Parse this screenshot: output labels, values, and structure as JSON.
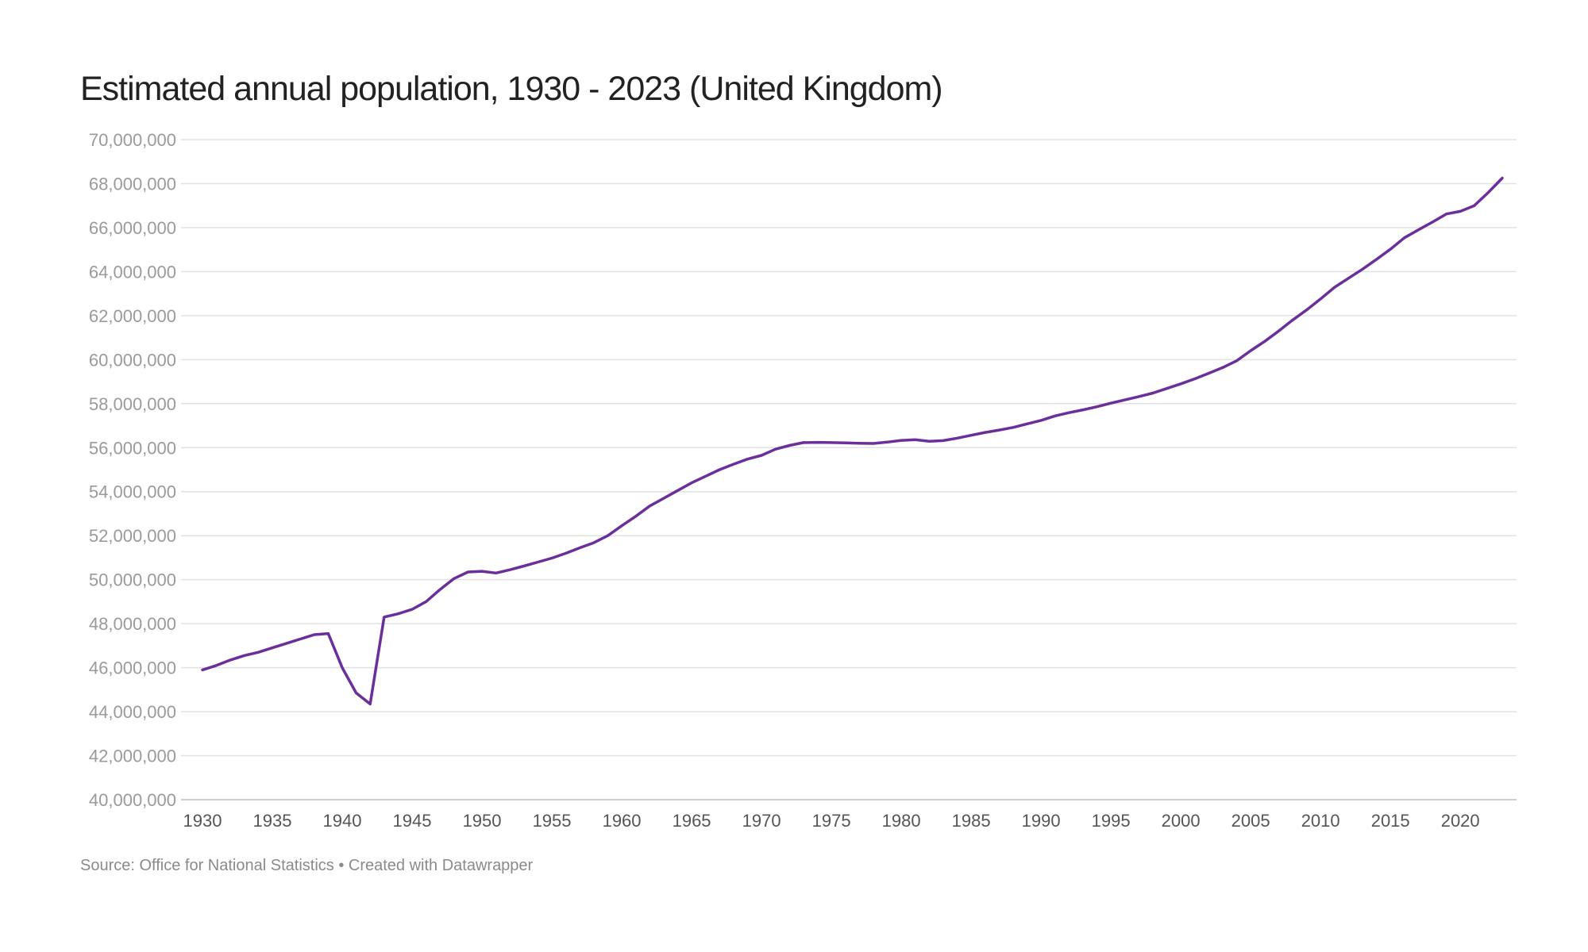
{
  "title": "Estimated annual population, 1930 - 2023 (United Kingdom)",
  "source": "Source: Office for National Statistics • Created with Datawrapper",
  "colors": {
    "line": "#6a2f9a",
    "grid": "#e2e2e2",
    "axis": "#bdbdbd"
  },
  "chart_data": {
    "type": "line",
    "title": "Estimated annual population, 1930 - 2023 (United Kingdom)",
    "xlabel": "",
    "ylabel": "",
    "xlim": [
      1930,
      2023
    ],
    "ylim": [
      40000000,
      70000000
    ],
    "grid": true,
    "legend": "none",
    "yticks": [
      40000000,
      42000000,
      44000000,
      46000000,
      48000000,
      50000000,
      52000000,
      54000000,
      56000000,
      58000000,
      60000000,
      62000000,
      64000000,
      66000000,
      68000000,
      70000000
    ],
    "ytick_labels": [
      "40,000,000",
      "42,000,000",
      "44,000,000",
      "46,000,000",
      "48,000,000",
      "50,000,000",
      "52,000,000",
      "54,000,000",
      "56,000,000",
      "58,000,000",
      "60,000,000",
      "62,000,000",
      "64,000,000",
      "66,000,000",
      "68,000,000",
      "70,000,000"
    ],
    "xticks": [
      1930,
      1935,
      1940,
      1945,
      1950,
      1955,
      1960,
      1965,
      1970,
      1975,
      1980,
      1985,
      1990,
      1995,
      2000,
      2005,
      2010,
      2015,
      2020
    ],
    "xtick_labels": [
      "1930",
      "1935",
      "1940",
      "1945",
      "1950",
      "1955",
      "1960",
      "1965",
      "1970",
      "1975",
      "1980",
      "1985",
      "1990",
      "1995",
      "2000",
      "2005",
      "2010",
      "2015",
      "2020"
    ],
    "series": [
      {
        "x": [
          1930,
          1931,
          1932,
          1933,
          1934,
          1935,
          1936,
          1937,
          1938,
          1939,
          1940,
          1941,
          1942,
          1943,
          1944,
          1945,
          1946,
          1947,
          1948,
          1949,
          1950,
          1951,
          1952,
          1953,
          1954,
          1955,
          1956,
          1957,
          1958,
          1959,
          1960,
          1961,
          1962,
          1963,
          1964,
          1965,
          1966,
          1967,
          1968,
          1969,
          1970,
          1971,
          1972,
          1973,
          1974,
          1975,
          1976,
          1977,
          1978,
          1979,
          1980,
          1981,
          1982,
          1983,
          1984,
          1985,
          1986,
          1987,
          1988,
          1989,
          1990,
          1991,
          1992,
          1993,
          1994,
          1995,
          1996,
          1997,
          1998,
          1999,
          2000,
          2001,
          2002,
          2003,
          2004,
          2005,
          2006,
          2007,
          2008,
          2009,
          2010,
          2011,
          2012,
          2013,
          2014,
          2015,
          2016,
          2017,
          2018,
          2019,
          2020,
          2021,
          2022,
          2023
        ],
        "values": [
          45900000,
          46100000,
          46350000,
          46550000,
          46700000,
          46900000,
          47100000,
          47300000,
          47500000,
          47550000,
          46000000,
          44850000,
          44350000,
          48300000,
          48450000,
          48650000,
          49000000,
          49550000,
          50050000,
          50350000,
          50380000,
          50300000,
          50450000,
          50620000,
          50800000,
          50980000,
          51200000,
          51450000,
          51680000,
          52000000,
          52450000,
          52880000,
          53350000,
          53700000,
          54050000,
          54400000,
          54700000,
          55000000,
          55250000,
          55480000,
          55650000,
          55930000,
          56100000,
          56230000,
          56240000,
          56230000,
          56220000,
          56200000,
          56190000,
          56250000,
          56330000,
          56360000,
          56290000,
          56320000,
          56430000,
          56560000,
          56690000,
          56800000,
          56920000,
          57080000,
          57240000,
          57440000,
          57590000,
          57720000,
          57860000,
          58020000,
          58170000,
          58320000,
          58480000,
          58690000,
          58900000,
          59130000,
          59380000,
          59640000,
          59950000,
          60410000,
          60830000,
          61300000,
          61800000,
          62260000,
          62760000,
          63290000,
          63700000,
          64110000,
          64560000,
          65020000,
          65540000,
          65900000,
          66250000,
          66620000,
          66740000,
          67000000,
          67600000,
          68250000
        ]
      }
    ]
  }
}
